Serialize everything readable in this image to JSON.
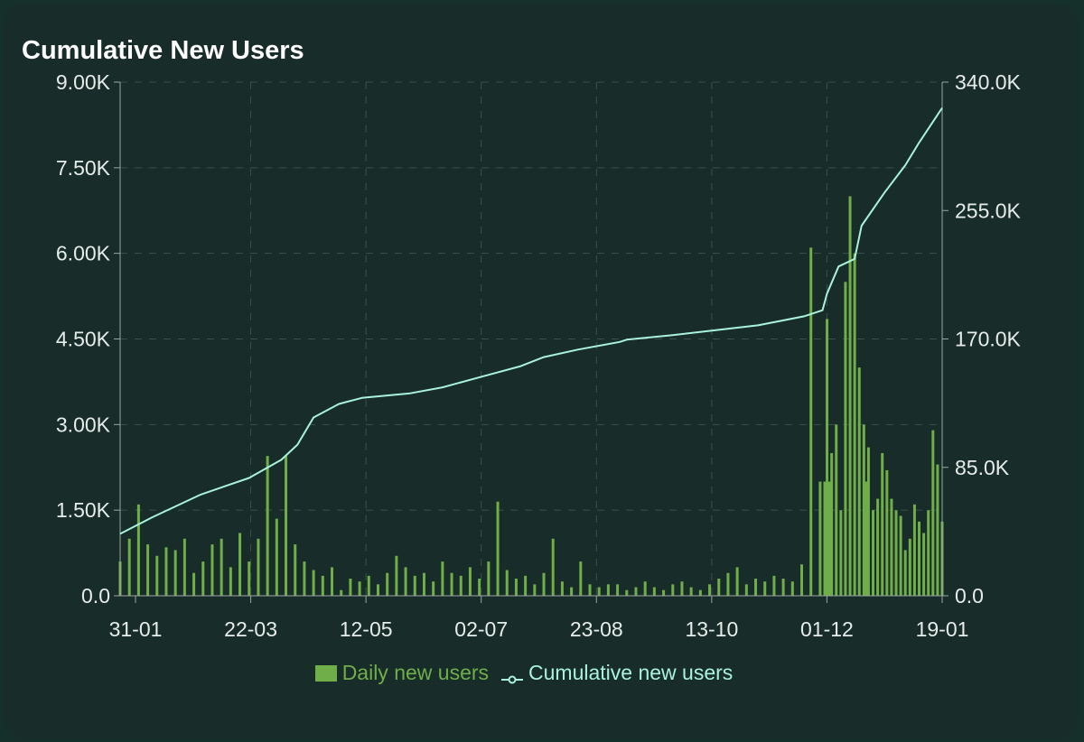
{
  "chart_data": {
    "type": "bar+line",
    "title": "Cumulative New Users",
    "x_tick_labels": [
      "31-01",
      "22-03",
      "12-05",
      "02-07",
      "23-08",
      "13-10",
      "01-12",
      "19-01"
    ],
    "x_range": [
      "2023-01-27",
      "2024-01-19"
    ],
    "y_left": {
      "ticks": [
        "0.0",
        "1.50K",
        "3.00K",
        "4.50K",
        "6.00K",
        "7.50K",
        "9.00K"
      ],
      "range": [
        0,
        9000
      ]
    },
    "y_right": {
      "ticks": [
        "0.0",
        "85.0K",
        "170.0K",
        "255.0K",
        "340.0K"
      ],
      "range": [
        0,
        340000
      ]
    },
    "grid": true,
    "legend_position": "bottom",
    "series": [
      {
        "name": "Daily new users",
        "type": "bar",
        "axis": "left",
        "color": "#6fae48",
        "x": [
          "2023-01-27",
          "2023-01-31",
          "2023-02-04",
          "2023-02-08",
          "2023-02-12",
          "2023-02-16",
          "2023-02-20",
          "2023-02-24",
          "2023-02-28",
          "2023-03-04",
          "2023-03-08",
          "2023-03-12",
          "2023-03-16",
          "2023-03-20",
          "2023-03-24",
          "2023-03-28",
          "2023-04-01",
          "2023-04-05",
          "2023-04-09",
          "2023-04-13",
          "2023-04-17",
          "2023-04-21",
          "2023-04-25",
          "2023-04-29",
          "2023-05-03",
          "2023-05-07",
          "2023-05-11",
          "2023-05-15",
          "2023-05-19",
          "2023-05-23",
          "2023-05-27",
          "2023-05-31",
          "2023-06-04",
          "2023-06-08",
          "2023-06-12",
          "2023-06-16",
          "2023-06-20",
          "2023-06-24",
          "2023-06-28",
          "2023-07-02",
          "2023-07-06",
          "2023-07-10",
          "2023-07-14",
          "2023-07-18",
          "2023-07-22",
          "2023-07-26",
          "2023-07-30",
          "2023-08-03",
          "2023-08-07",
          "2023-08-11",
          "2023-08-15",
          "2023-08-19",
          "2023-08-23",
          "2023-08-27",
          "2023-08-31",
          "2023-09-04",
          "2023-09-08",
          "2023-09-12",
          "2023-09-16",
          "2023-09-20",
          "2023-09-24",
          "2023-09-28",
          "2023-10-02",
          "2023-10-06",
          "2023-10-10",
          "2023-10-14",
          "2023-10-18",
          "2023-10-22",
          "2023-10-26",
          "2023-10-30",
          "2023-11-03",
          "2023-11-07",
          "2023-11-11",
          "2023-11-15",
          "2023-11-19",
          "2023-11-23",
          "2023-11-27",
          "2023-11-29",
          "2023-11-30",
          "2023-12-01",
          "2023-12-02",
          "2023-12-04",
          "2023-12-06",
          "2023-12-08",
          "2023-12-10",
          "2023-12-12",
          "2023-12-14",
          "2023-12-16",
          "2023-12-17",
          "2023-12-18",
          "2023-12-20",
          "2023-12-22",
          "2023-12-24",
          "2023-12-26",
          "2023-12-28",
          "2023-12-30",
          "2024-01-01",
          "2024-01-03",
          "2024-01-05",
          "2024-01-07",
          "2024-01-09",
          "2024-01-11",
          "2024-01-13",
          "2024-01-15",
          "2024-01-17",
          "2024-01-19"
        ],
        "values": [
          600,
          1000,
          1600,
          900,
          700,
          850,
          800,
          1000,
          400,
          600,
          900,
          1000,
          500,
          1100,
          600,
          1000,
          2450,
          1350,
          2450,
          900,
          600,
          450,
          350,
          500,
          100,
          300,
          250,
          350,
          200,
          400,
          700,
          500,
          350,
          400,
          250,
          600,
          400,
          350,
          500,
          300,
          600,
          1650,
          450,
          300,
          350,
          200,
          400,
          1000,
          250,
          150,
          600,
          200,
          150,
          200,
          200,
          100,
          150,
          250,
          150,
          100,
          200,
          250,
          150,
          100,
          200,
          300,
          400,
          500,
          200,
          300,
          250,
          350,
          300,
          250,
          550,
          6100,
          2000,
          2000,
          4850,
          2000,
          2500,
          3000,
          1500,
          5500,
          7000,
          6000,
          4000,
          3000,
          2000,
          2600,
          1500,
          1700,
          2500,
          2200,
          1700,
          1500,
          1400,
          800,
          1000,
          1600,
          1300,
          1100,
          1500,
          2900,
          2300,
          1300
        ]
      },
      {
        "name": "Cumulative new users",
        "type": "line",
        "axis": "right",
        "color": "#a9f2dc",
        "x": [
          "2023-01-27",
          "2023-02-10",
          "2023-03-03",
          "2023-03-24",
          "2023-04-07",
          "2023-04-14",
          "2023-04-21",
          "2023-05-02",
          "2023-05-12",
          "2023-06-02",
          "2023-06-16",
          "2023-07-03",
          "2023-07-20",
          "2023-07-30",
          "2023-08-14",
          "2023-09-01",
          "2023-09-04",
          "2023-09-24",
          "2023-10-08",
          "2023-10-31",
          "2023-11-20",
          "2023-11-28",
          "2023-11-30",
          "2023-12-05",
          "2023-12-12",
          "2023-12-15",
          "2023-12-25",
          "2024-01-03",
          "2024-01-09",
          "2024-01-19"
        ],
        "values": [
          41000,
          52000,
          67000,
          78000,
          90000,
          100000,
          118000,
          127000,
          131000,
          134000,
          138000,
          145000,
          152000,
          158000,
          163000,
          168000,
          169500,
          172500,
          175000,
          179000,
          185000,
          189000,
          200000,
          218000,
          223000,
          245000,
          267000,
          285000,
          300000,
          323000
        ]
      }
    ]
  }
}
